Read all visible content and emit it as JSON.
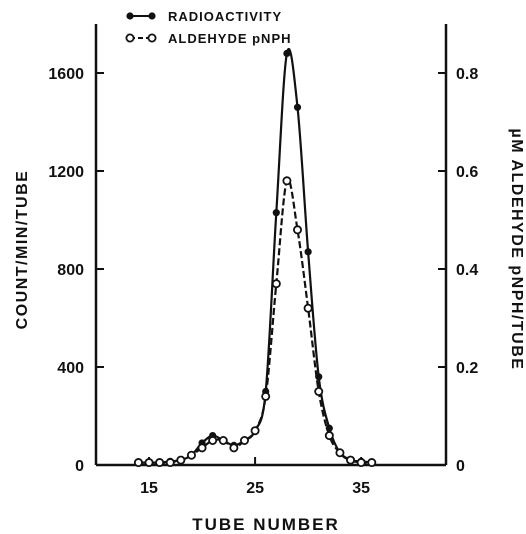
{
  "chart_data": {
    "type": "line",
    "xlabel": "TUBE NUMBER",
    "ylabel_left": "COUNT/MIN/TUBE",
    "ylabel_right": "µM ALDEHYDE pNPH/TUBE",
    "x_ticks": [
      15,
      25,
      35
    ],
    "y_left_ticks": [
      0,
      400,
      800,
      1200,
      1600
    ],
    "y_right_ticks": [
      "0",
      "0.2",
      "0.4",
      "0.6",
      "0.8"
    ],
    "xlim": [
      10,
      43
    ],
    "ylim_left": [
      0,
      1800
    ],
    "ylim_right": [
      0,
      0.9
    ],
    "legend_position": "top-center",
    "series": [
      {
        "name": "RADIOACTIVITY",
        "axis": "left",
        "marker": "filled",
        "x": [
          14,
          15,
          16,
          17,
          18,
          19,
          20,
          21,
          22,
          23,
          24,
          25,
          26,
          27,
          28,
          29,
          30,
          31,
          32,
          33,
          34,
          35,
          36
        ],
        "y": [
          10,
          10,
          10,
          15,
          20,
          40,
          90,
          120,
          100,
          80,
          100,
          140,
          300,
          1030,
          1680,
          1460,
          870,
          360,
          150,
          50,
          20,
          15,
          10
        ]
      },
      {
        "name": "ALDEHYDE pNPH",
        "axis": "right",
        "marker": "open",
        "x": [
          14,
          15,
          16,
          17,
          18,
          19,
          20,
          21,
          22,
          23,
          24,
          25,
          26,
          27,
          28,
          29,
          30,
          31,
          32,
          33,
          34,
          35,
          36
        ],
        "y": [
          0.005,
          0.005,
          0.005,
          0.005,
          0.01,
          0.02,
          0.035,
          0.05,
          0.05,
          0.035,
          0.05,
          0.07,
          0.14,
          0.37,
          0.58,
          0.48,
          0.32,
          0.15,
          0.06,
          0.025,
          0.01,
          0.005,
          0.005
        ]
      }
    ]
  }
}
